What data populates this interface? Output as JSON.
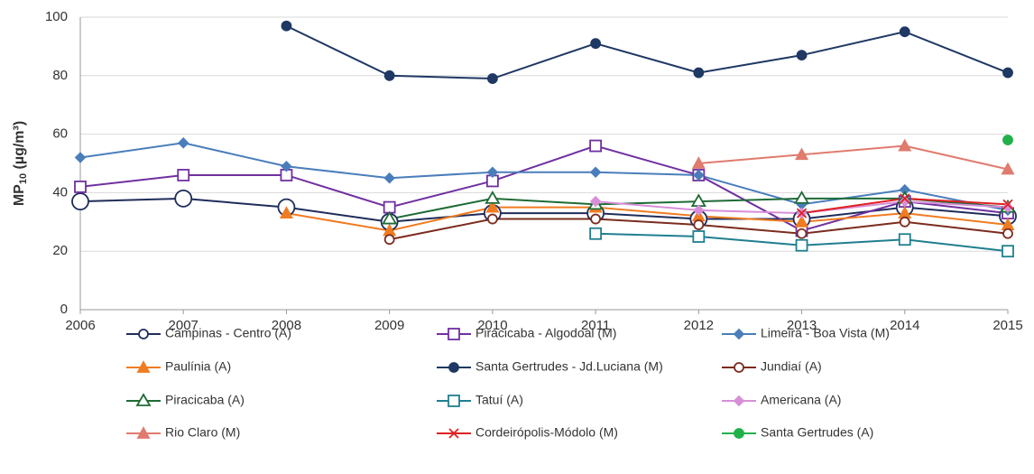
{
  "chart_data": {
    "type": "line",
    "y_label": [
      "MP",
      "10",
      " (µg/m³)"
    ],
    "x": [
      2006,
      2007,
      2008,
      2009,
      2010,
      2011,
      2012,
      2013,
      2014,
      2015
    ],
    "xlim": [
      2006,
      2015
    ],
    "xticks": [
      2006,
      2007,
      2008,
      2009,
      2010,
      2011,
      2012,
      2013,
      2014,
      2015
    ],
    "ylim": [
      0,
      100
    ],
    "yticks": [
      0,
      20,
      40,
      60,
      80,
      100
    ],
    "grid": true,
    "legend": "bottom",
    "series": [
      {
        "name": "Campinas - Centro (A)",
        "color": "#1f2d5a",
        "marker": "circle-open-large",
        "values": [
          37,
          38,
          35,
          30,
          33,
          33,
          31,
          31,
          35,
          32
        ]
      },
      {
        "name": "Piracicaba - Algodoal (M)",
        "color": "#7030a0",
        "marker": "square-open",
        "values": [
          42,
          46,
          46,
          35,
          44,
          56,
          46,
          27,
          37,
          33
        ]
      },
      {
        "name": "Limeira - Boa Vista (M)",
        "color": "#4a7ebb",
        "marker": "diamond",
        "values": [
          52,
          57,
          49,
          45,
          47,
          47,
          46,
          36,
          41,
          34
        ]
      },
      {
        "name": "Paulínia (A)",
        "color": "#f07c22",
        "marker": "triangle",
        "values": [
          null,
          null,
          33,
          27,
          35,
          35,
          32,
          30,
          33,
          29
        ]
      },
      {
        "name": "Santa Gertrudes - Jd.Luciana (M)",
        "color": "#1f3864",
        "marker": "circle",
        "values": [
          null,
          null,
          97,
          80,
          79,
          91,
          81,
          87,
          95,
          81
        ]
      },
      {
        "name": "Jundiaí (A)",
        "color": "#7b2c1e",
        "marker": "circle-open",
        "values": [
          null,
          null,
          null,
          24,
          31,
          31,
          29,
          26,
          30,
          26
        ]
      },
      {
        "name": "Piracicaba (A)",
        "color": "#1e6b35",
        "marker": "triangle-open",
        "values": [
          null,
          null,
          null,
          31,
          38,
          36,
          37,
          38,
          38,
          35
        ]
      },
      {
        "name": "Tatuí (A)",
        "color": "#1f7f8f",
        "marker": "square-open",
        "values": [
          null,
          null,
          null,
          null,
          null,
          26,
          25,
          22,
          24,
          20
        ]
      },
      {
        "name": "Americana (A)",
        "color": "#d88fd8",
        "marker": "diamond",
        "values": [
          null,
          null,
          null,
          null,
          null,
          37,
          34,
          33,
          37,
          35
        ]
      },
      {
        "name": "Rio Claro (M)",
        "color": "#e07b6e",
        "marker": "triangle",
        "values": [
          null,
          null,
          null,
          null,
          null,
          null,
          50,
          53,
          56,
          48
        ]
      },
      {
        "name": "Cordeirópolis-Módolo (M)",
        "color": "#e02020",
        "marker": "x",
        "values": [
          null,
          null,
          null,
          null,
          null,
          null,
          null,
          33,
          38,
          36
        ]
      },
      {
        "name": "Santa Gertrudes (A)",
        "color": "#22b04b",
        "marker": "circle",
        "values": [
          null,
          null,
          null,
          null,
          null,
          null,
          null,
          null,
          null,
          58
        ]
      }
    ]
  }
}
